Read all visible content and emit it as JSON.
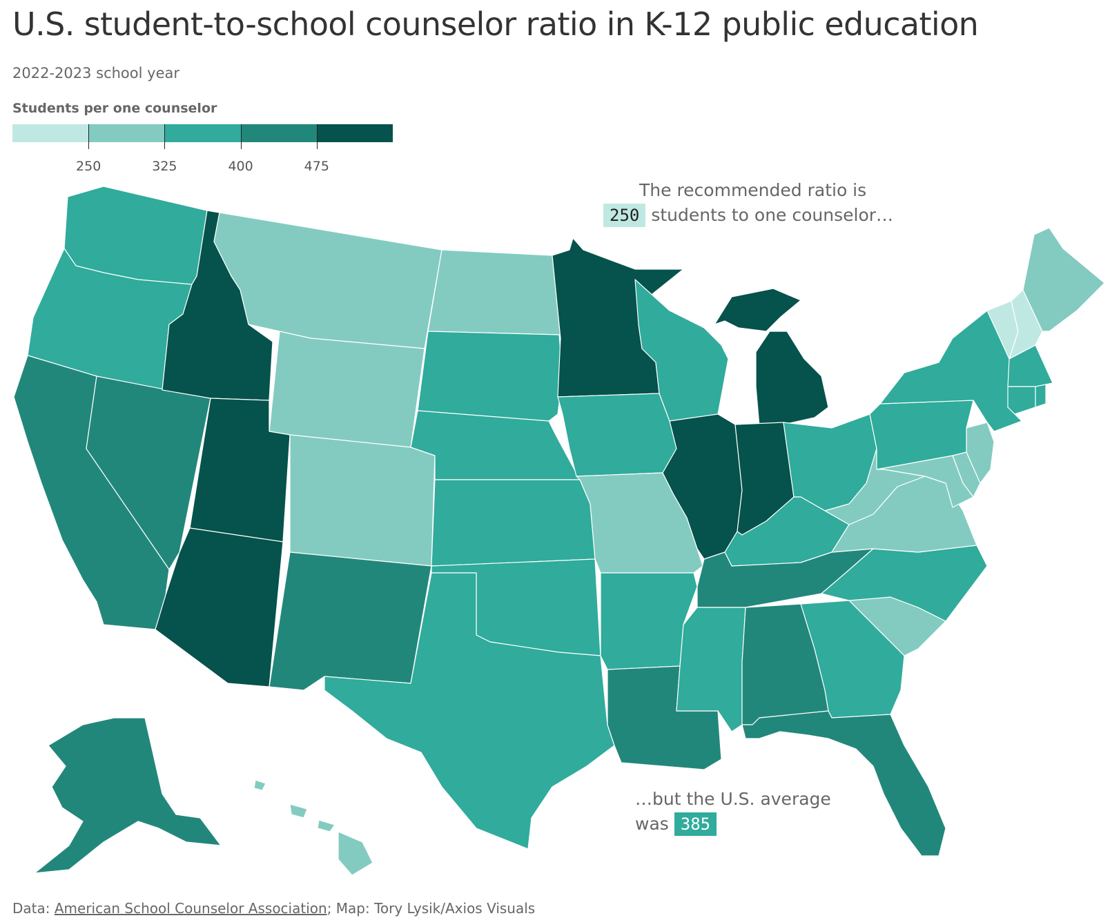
{
  "header": {
    "title": "U.S. student-to-school counselor ratio in K-12 public education",
    "subtitle": "2022-2023 school year"
  },
  "legend": {
    "title": "Students per one counselor",
    "ticks": [
      "250",
      "325",
      "400",
      "475"
    ],
    "colors": [
      "#c0e8e3",
      "#83cbc0",
      "#30ab9c",
      "#22877b",
      "#06524c"
    ]
  },
  "annotations": {
    "recommended_line1": "The recommended ratio is",
    "recommended_value": "250",
    "recommended_line2": "students to one counselor…",
    "average_line1": "…but the U.S. average",
    "average_prefix": "was",
    "average_value": "385"
  },
  "footer": {
    "prefix": "Data:",
    "source": "American School Counselor Association",
    "credit": "; Map: Tory Lysik/Axios Visuals"
  },
  "chart_data": {
    "type": "choropleth",
    "value_label": "Students per one counselor",
    "bins": [
      {
        "max": 250,
        "color": "#c0e8e3"
      },
      {
        "min": 250,
        "max": 325,
        "color": "#83cbc0"
      },
      {
        "min": 325,
        "max": 400,
        "color": "#30ab9c"
      },
      {
        "min": 400,
        "max": 475,
        "color": "#22877b"
      },
      {
        "min": 475,
        "color": "#06524c"
      }
    ],
    "recommended": 250,
    "us_average": 385,
    "states": [
      {
        "state": "WA",
        "bin": 2
      },
      {
        "state": "OR",
        "bin": 2
      },
      {
        "state": "CA",
        "bin": 3
      },
      {
        "state": "NV",
        "bin": 3
      },
      {
        "state": "ID",
        "bin": 4
      },
      {
        "state": "MT",
        "bin": 1
      },
      {
        "state": "WY",
        "bin": 1
      },
      {
        "state": "UT",
        "bin": 4
      },
      {
        "state": "AZ",
        "bin": 4
      },
      {
        "state": "CO",
        "bin": 1
      },
      {
        "state": "NM",
        "bin": 3
      },
      {
        "state": "ND",
        "bin": 1
      },
      {
        "state": "SD",
        "bin": 2
      },
      {
        "state": "NE",
        "bin": 2
      },
      {
        "state": "KS",
        "bin": 2
      },
      {
        "state": "OK",
        "bin": 2
      },
      {
        "state": "TX",
        "bin": 2
      },
      {
        "state": "MN",
        "bin": 4
      },
      {
        "state": "IA",
        "bin": 2
      },
      {
        "state": "MO",
        "bin": 1
      },
      {
        "state": "AR",
        "bin": 2
      },
      {
        "state": "LA",
        "bin": 3
      },
      {
        "state": "WI",
        "bin": 2
      },
      {
        "state": "IL",
        "bin": 4
      },
      {
        "state": "MI",
        "bin": 4
      },
      {
        "state": "IN",
        "bin": 4
      },
      {
        "state": "OH",
        "bin": 2
      },
      {
        "state": "KY",
        "bin": 2
      },
      {
        "state": "TN",
        "bin": 3
      },
      {
        "state": "MS",
        "bin": 2
      },
      {
        "state": "AL",
        "bin": 3
      },
      {
        "state": "GA",
        "bin": 2
      },
      {
        "state": "FL",
        "bin": 3
      },
      {
        "state": "SC",
        "bin": 1
      },
      {
        "state": "NC",
        "bin": 2
      },
      {
        "state": "VA",
        "bin": 1
      },
      {
        "state": "WV",
        "bin": 1
      },
      {
        "state": "MD",
        "bin": 1
      },
      {
        "state": "DE",
        "bin": 1
      },
      {
        "state": "NJ",
        "bin": 1
      },
      {
        "state": "PA",
        "bin": 2
      },
      {
        "state": "NY",
        "bin": 2
      },
      {
        "state": "CT",
        "bin": 2
      },
      {
        "state": "RI",
        "bin": 2
      },
      {
        "state": "MA",
        "bin": 2
      },
      {
        "state": "VT",
        "bin": 0
      },
      {
        "state": "NH",
        "bin": 0
      },
      {
        "state": "ME",
        "bin": 1
      },
      {
        "state": "AK",
        "bin": 3
      },
      {
        "state": "HI",
        "bin": 1
      }
    ]
  }
}
